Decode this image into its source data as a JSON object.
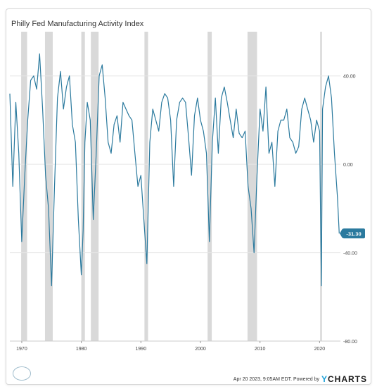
{
  "title": "Philly Fed Manufacturing Activity Index",
  "footer": {
    "timestamp": "Apr 20 2023, 9:05AM EDT.  Powered by",
    "brand_prefix": "Y",
    "brand_rest": "CHARTS"
  },
  "colors": {
    "line": "#2b7a9e",
    "recession": "#d9d9d9",
    "grid": "#e6e6e6",
    "last_badge": "#2b7a9e"
  },
  "chart_data": {
    "type": "line",
    "title": "Philly Fed Manufacturing Activity Index",
    "xlabel": "",
    "ylabel": "",
    "xlim": [
      1968.0,
      2023.5
    ],
    "ylim": [
      -80,
      60
    ],
    "x_ticks": [
      1970,
      1980,
      1990,
      2000,
      2010,
      2020
    ],
    "x_tick_labels": [
      "1970",
      "1980",
      "1990",
      "2000",
      "2010",
      "2020"
    ],
    "y_ticks": [
      40,
      0,
      -40,
      -80
    ],
    "y_tick_labels": [
      "40.00",
      "0.00",
      "-40.00",
      "-80.00"
    ],
    "grid": true,
    "last_value": -31.3,
    "last_value_label": "-31.30",
    "recessions": [
      [
        1969.9,
        1970.9
      ],
      [
        1973.9,
        1975.2
      ],
      [
        1980.0,
        1980.6
      ],
      [
        1981.6,
        1982.9
      ],
      [
        1990.6,
        1991.2
      ],
      [
        2001.2,
        2001.9
      ],
      [
        2007.9,
        2009.5
      ],
      [
        2020.1,
        2020.4
      ]
    ],
    "series": [
      {
        "x": [
          1968.0,
          1968.5,
          1969.0,
          1969.5,
          1970.0,
          1970.5,
          1971.0,
          1971.5,
          1972.0,
          1972.5,
          1973.0,
          1973.5,
          1974.0,
          1974.5,
          1975.0,
          1975.5,
          1976.0,
          1976.5,
          1977.0,
          1977.5,
          1978.0,
          1978.5,
          1979.0,
          1979.5,
          1980.0,
          1980.3,
          1980.6,
          1981.0,
          1981.5,
          1982.0,
          1982.5,
          1983.0,
          1983.5,
          1984.0,
          1984.5,
          1985.0,
          1985.5,
          1986.0,
          1986.5,
          1987.0,
          1987.5,
          1988.0,
          1988.5,
          1989.0,
          1989.5,
          1990.0,
          1990.5,
          1991.0,
          1991.5,
          1992.0,
          1992.5,
          1993.0,
          1993.5,
          1994.0,
          1994.5,
          1995.0,
          1995.5,
          1996.0,
          1996.5,
          1997.0,
          1997.5,
          1998.0,
          1998.5,
          1999.0,
          1999.5,
          2000.0,
          2000.5,
          2001.0,
          2001.5,
          2002.0,
          2002.5,
          2003.0,
          2003.5,
          2004.0,
          2004.5,
          2005.0,
          2005.5,
          2006.0,
          2006.5,
          2007.0,
          2007.5,
          2008.0,
          2008.5,
          2009.0,
          2009.5,
          2010.0,
          2010.5,
          2011.0,
          2011.5,
          2012.0,
          2012.5,
          2013.0,
          2013.5,
          2014.0,
          2014.5,
          2015.0,
          2015.5,
          2016.0,
          2016.5,
          2017.0,
          2017.5,
          2018.0,
          2018.5,
          2019.0,
          2019.5,
          2020.0,
          2020.3,
          2020.5,
          2021.0,
          2021.5,
          2022.0,
          2022.5,
          2023.0,
          2023.3
        ],
        "values": [
          32,
          -10,
          28,
          5,
          -35,
          -5,
          20,
          38,
          40,
          34,
          50,
          25,
          -5,
          -20,
          -55,
          -10,
          30,
          42,
          25,
          35,
          40,
          18,
          10,
          -25,
          -50,
          -30,
          10,
          28,
          20,
          -25,
          5,
          40,
          45,
          30,
          10,
          5,
          18,
          22,
          10,
          28,
          25,
          22,
          20,
          5,
          -10,
          -5,
          -25,
          -45,
          10,
          25,
          20,
          15,
          28,
          32,
          30,
          20,
          -10,
          20,
          28,
          30,
          28,
          12,
          -5,
          22,
          30,
          20,
          15,
          5,
          -35,
          10,
          30,
          5,
          30,
          35,
          28,
          20,
          12,
          25,
          14,
          12,
          15,
          -10,
          -20,
          -40,
          -5,
          25,
          15,
          35,
          5,
          10,
          -10,
          15,
          20,
          20,
          25,
          12,
          10,
          5,
          8,
          25,
          30,
          25,
          20,
          10,
          20,
          15,
          -55,
          25,
          35,
          40,
          30,
          5,
          -15,
          -31.3
        ]
      }
    ]
  }
}
